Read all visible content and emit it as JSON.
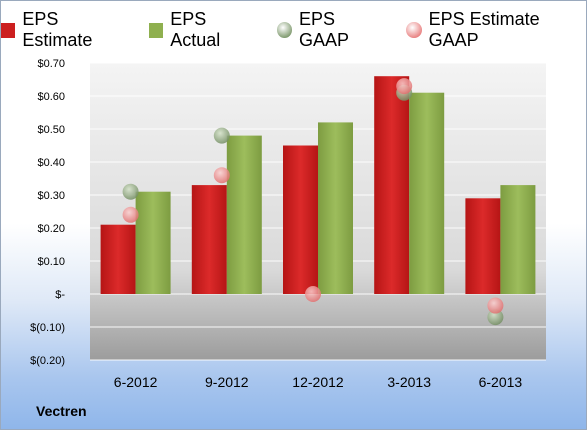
{
  "chart_data": {
    "type": "bar",
    "categories": [
      "6-2012",
      "9-2012",
      "12-2012",
      "3-2013",
      "6-2013"
    ],
    "series": [
      {
        "name": "EPS Estimate",
        "kind": "bar",
        "color": "#cc1f1f",
        "values": [
          0.21,
          0.33,
          0.45,
          0.66,
          0.29
        ]
      },
      {
        "name": "EPS Actual",
        "kind": "bar",
        "color": "#8fb04f",
        "values": [
          0.31,
          0.48,
          0.52,
          0.61,
          0.33
        ]
      },
      {
        "name": "EPS GAAP",
        "kind": "point",
        "color": "#7f9a6e",
        "values": [
          0.31,
          0.48,
          null,
          0.61,
          -0.07
        ]
      },
      {
        "name": "EPS Estimate GAAP",
        "kind": "point",
        "color": "#e88080",
        "values": [
          0.24,
          0.36,
          0.0,
          0.63,
          -0.035
        ]
      }
    ],
    "yticks": [
      0.7,
      0.6,
      0.5,
      0.4,
      0.3,
      0.2,
      0.1,
      0,
      -0.1,
      -0.2
    ],
    "ytick_labels": [
      "$0.70",
      "$0.60",
      "$0.50",
      "$0.40",
      "$0.30",
      "$0.20",
      "$0.10",
      "$-",
      "$(0.10)",
      "$(0.20)"
    ],
    "ylim": [
      -0.2,
      0.7
    ],
    "grid": true,
    "legend_position": "top",
    "company": "Vectren"
  }
}
